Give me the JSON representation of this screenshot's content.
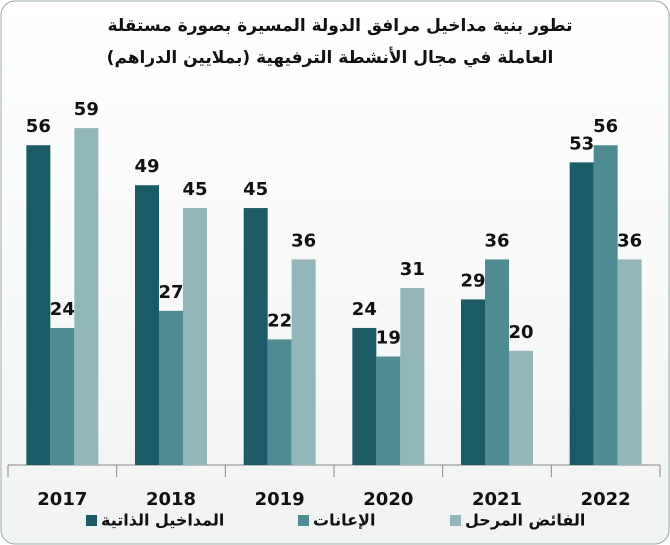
{
  "chart_data": {
    "type": "bar",
    "title": [
      "تطور بنية مداخيل مرافق الدولة المسيرة بصورة مستقلة",
      "العاملة في مجال الأنشطة الترفيهية  (بملايين الدراهم)"
    ],
    "categories": [
      "2017",
      "2018",
      "2019",
      "2020",
      "2021",
      "2022"
    ],
    "series": [
      {
        "name": "المداخيل الذاتية",
        "color": "#1c5a66",
        "values": [
          56,
          49,
          45,
          24,
          29,
          53
        ]
      },
      {
        "name": "الإعانات",
        "color": "#4f8b93",
        "values": [
          24,
          27,
          22,
          19,
          36,
          56
        ]
      },
      {
        "name": "الفائض المرحل",
        "color": "#93b6bb",
        "values": [
          59,
          45,
          36,
          31,
          20,
          36
        ]
      }
    ]
  }
}
